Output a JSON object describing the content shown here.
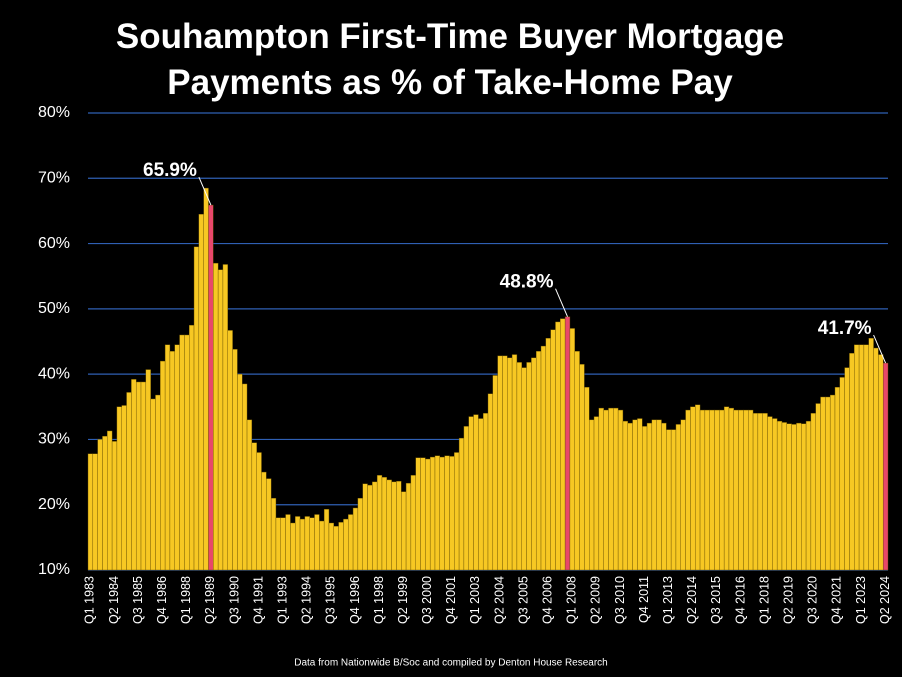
{
  "chart_data": {
    "type": "bar",
    "title": "Souhampton First-Time Buyer Mortgage Payments as % of Take-Home Pay",
    "source": "Data from Nationwide B/Soc and compiled by Denton House Research",
    "categories": [
      "Q1 1983",
      null,
      null,
      null,
      null,
      "Q2 1984",
      null,
      null,
      null,
      null,
      "Q3 1985",
      null,
      null,
      null,
      null,
      "Q4 1986",
      null,
      null,
      null,
      null,
      "Q1 1988",
      null,
      null,
      null,
      null,
      "Q2 1989",
      null,
      null,
      null,
      null,
      "Q3 1990",
      null,
      null,
      null,
      null,
      "Q4 1991",
      null,
      null,
      null,
      null,
      "Q1 1993",
      null,
      null,
      null,
      null,
      "Q2 1994",
      null,
      null,
      null,
      null,
      "Q3 1995",
      null,
      null,
      null,
      null,
      "Q4 1996",
      null,
      null,
      null,
      null,
      "Q1 1998",
      null,
      null,
      null,
      null,
      "Q2 1999",
      null,
      null,
      null,
      null,
      "Q3 2000",
      null,
      null,
      null,
      null,
      "Q4 2001",
      null,
      null,
      null,
      null,
      "Q1 2003",
      null,
      null,
      null,
      null,
      "Q2 2004",
      null,
      null,
      null,
      null,
      "Q3 2005",
      null,
      null,
      null,
      null,
      "Q4 2006",
      null,
      null,
      null,
      null,
      "Q1 2008",
      null,
      null,
      null,
      null,
      "Q2 2009",
      null,
      null,
      null,
      null,
      "Q3 2010",
      null,
      null,
      null,
      null,
      "Q4 2011",
      null,
      null,
      null,
      null,
      "Q1 2013",
      null,
      null,
      null,
      null,
      "Q2 2014",
      null,
      null,
      null,
      null,
      "Q3 2015",
      null,
      null,
      null,
      null,
      "Q4 2016",
      null,
      null,
      null,
      null,
      "Q1 2018",
      null,
      null,
      null,
      null,
      "Q2 2019",
      null,
      null,
      null,
      null,
      "Q3 2020",
      null,
      null,
      null,
      null,
      "Q4 2021",
      null,
      null,
      null,
      null,
      "Q1 2023",
      null,
      null,
      null,
      null,
      "Q2 2024"
    ],
    "values": [
      27.8,
      27.8,
      30,
      30.5,
      31.3,
      29.7,
      35,
      35.2,
      37.2,
      39.2,
      38.8,
      38.8,
      40.7,
      36.2,
      36.8,
      42,
      44.5,
      43.5,
      44.5,
      46,
      46,
      47.5,
      59.5,
      64.5,
      68.5,
      65.9,
      57,
      56,
      56.8,
      46.7,
      43.8,
      40,
      38.5,
      33,
      29.5,
      28,
      25,
      24,
      21,
      18,
      18,
      18.5,
      17.2,
      18.2,
      17.8,
      18.2,
      18,
      18.5,
      17.5,
      19.3,
      17.2,
      16.7,
      17.3,
      17.8,
      18.5,
      19.5,
      21,
      23.2,
      23,
      23.5,
      24.5,
      24.2,
      23.8,
      23.5,
      23.6,
      22,
      23.3,
      24.5,
      27.2,
      27.2,
      27,
      27.3,
      27.5,
      27.3,
      27.5,
      27.4,
      28,
      30.2,
      32,
      33.5,
      33.8,
      33.2,
      34,
      37,
      39.8,
      42.8,
      42.8,
      42.5,
      43,
      41.8,
      41,
      41.8,
      42.5,
      43.5,
      44.3,
      45.5,
      46.8,
      48,
      48.5,
      48.8,
      47,
      43.5,
      41.5,
      38,
      33,
      33.5,
      34.8,
      34.5,
      34.8,
      34.8,
      34.5,
      32.8,
      32.5,
      33,
      33.2,
      32,
      32.5,
      33,
      33,
      32.5,
      31.5,
      31.5,
      32.3,
      33,
      34.5,
      35,
      35.3,
      34.5,
      34.5,
      34.5,
      34.5,
      34.5,
      35,
      34.8,
      34.5,
      34.5,
      34.5,
      34.5,
      34,
      34,
      34,
      33.5,
      33.2,
      32.8,
      32.6,
      32.4,
      32.3,
      32.5,
      32.4,
      32.8,
      34,
      35.5,
      36.5,
      36.5,
      36.8,
      38,
      39.5,
      41,
      43.2,
      44.5,
      44.5,
      44.5,
      45.5,
      44,
      43,
      41.7
    ],
    "value_labels": [
      null,
      null,
      null,
      null,
      null,
      null,
      null,
      null,
      null,
      null,
      null,
      null,
      null,
      null,
      null,
      null,
      null,
      null,
      null,
      null,
      null,
      null,
      null,
      null,
      null,
      "65.9%",
      null,
      null,
      null,
      null,
      null,
      null,
      null,
      null,
      null,
      null,
      null,
      null,
      null,
      null,
      null,
      null,
      null,
      null,
      null,
      null,
      null,
      null,
      null,
      null,
      null,
      null,
      null,
      null,
      null,
      null,
      null,
      null,
      null,
      null,
      null,
      null,
      null,
      null,
      null,
      null,
      null,
      null,
      null,
      null,
      null,
      null,
      null,
      null,
      null,
      null,
      null,
      null,
      null,
      null,
      null,
      null,
      null,
      null,
      null,
      null,
      null,
      null,
      null,
      null,
      null,
      null,
      null,
      null,
      null,
      null,
      null,
      null,
      null,
      "48.8%",
      null,
      null,
      null,
      null,
      null,
      null,
      null,
      null,
      null,
      null,
      null,
      null,
      null,
      null,
      null,
      null,
      null,
      null,
      null,
      null,
      null,
      null,
      null,
      null,
      null,
      null,
      null,
      null,
      null,
      null,
      null,
      null,
      null,
      null,
      null,
      null,
      null,
      null,
      null,
      null,
      null,
      null,
      null,
      null,
      null,
      null,
      null,
      null,
      null,
      null,
      null,
      null,
      null,
      null,
      null,
      null,
      null,
      null,
      null,
      null,
      null,
      null,
      null,
      null,
      null,
      "41.7%"
    ],
    "color": "#f7c823",
    "highlight_color": "#e8476a",
    "ylim": [
      10,
      80
    ],
    "yticks": [
      {
        "value": 10,
        "label": "10%"
      },
      {
        "value": 20,
        "label": "20%"
      },
      {
        "value": 30,
        "label": "30%"
      },
      {
        "value": 40,
        "label": "40%"
      },
      {
        "value": 50,
        "label": "50%"
      },
      {
        "value": 60,
        "label": "60%"
      },
      {
        "value": 70,
        "label": "70%"
      },
      {
        "value": 80,
        "label": "80%"
      }
    ],
    "grid": true
  }
}
